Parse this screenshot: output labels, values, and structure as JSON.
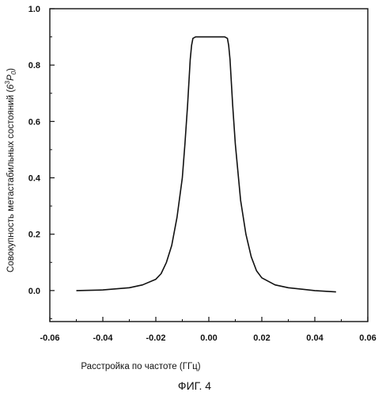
{
  "chart_data": {
    "type": "line",
    "title": "",
    "xlabel": "Расстройка по частоте (ГГц)",
    "ylabel": "Совокупность метастабильных состояний (",
    "ylabel_formula_base": "6",
    "ylabel_formula_sup": "3",
    "ylabel_formula_letter": "P",
    "ylabel_formula_sub": "0",
    "ylabel_close": ")",
    "xlim": [
      -0.06,
      0.06
    ],
    "ylim": [
      -0.11,
      1.0
    ],
    "x_ticks": [
      -0.06,
      -0.04,
      -0.02,
      0.0,
      0.02,
      0.04,
      0.06
    ],
    "x_tick_labels": [
      "-0.06",
      "-0.04",
      "-0.02",
      "0.00",
      "0.02",
      "0.04",
      "0.06"
    ],
    "y_ticks": [
      0.0,
      0.2,
      0.4,
      0.6,
      0.8,
      1.0
    ],
    "y_tick_labels": [
      "0.0",
      "0.2",
      "0.4",
      "0.6",
      "0.8",
      "1.0"
    ],
    "grid": false,
    "legend": "none",
    "series": [
      {
        "color": "#111111",
        "x": [
          -0.05,
          -0.04,
          -0.03,
          -0.025,
          -0.02,
          -0.018,
          -0.016,
          -0.014,
          -0.012,
          -0.01,
          -0.009,
          -0.008,
          -0.007,
          -0.0065,
          -0.006,
          -0.005,
          -0.003,
          0.0,
          0.003,
          0.006,
          0.007,
          0.0075,
          0.008,
          0.009,
          0.01,
          0.012,
          0.014,
          0.016,
          0.018,
          0.02,
          0.025,
          0.03,
          0.04,
          0.048
        ],
        "y": [
          0.0,
          0.002,
          0.01,
          0.02,
          0.04,
          0.06,
          0.1,
          0.16,
          0.26,
          0.4,
          0.52,
          0.66,
          0.82,
          0.87,
          0.895,
          0.9,
          0.9,
          0.9,
          0.9,
          0.9,
          0.895,
          0.87,
          0.82,
          0.66,
          0.52,
          0.32,
          0.2,
          0.12,
          0.07,
          0.045,
          0.02,
          0.01,
          0.0,
          -0.005
        ]
      }
    ]
  },
  "caption": "ФИГ. 4"
}
